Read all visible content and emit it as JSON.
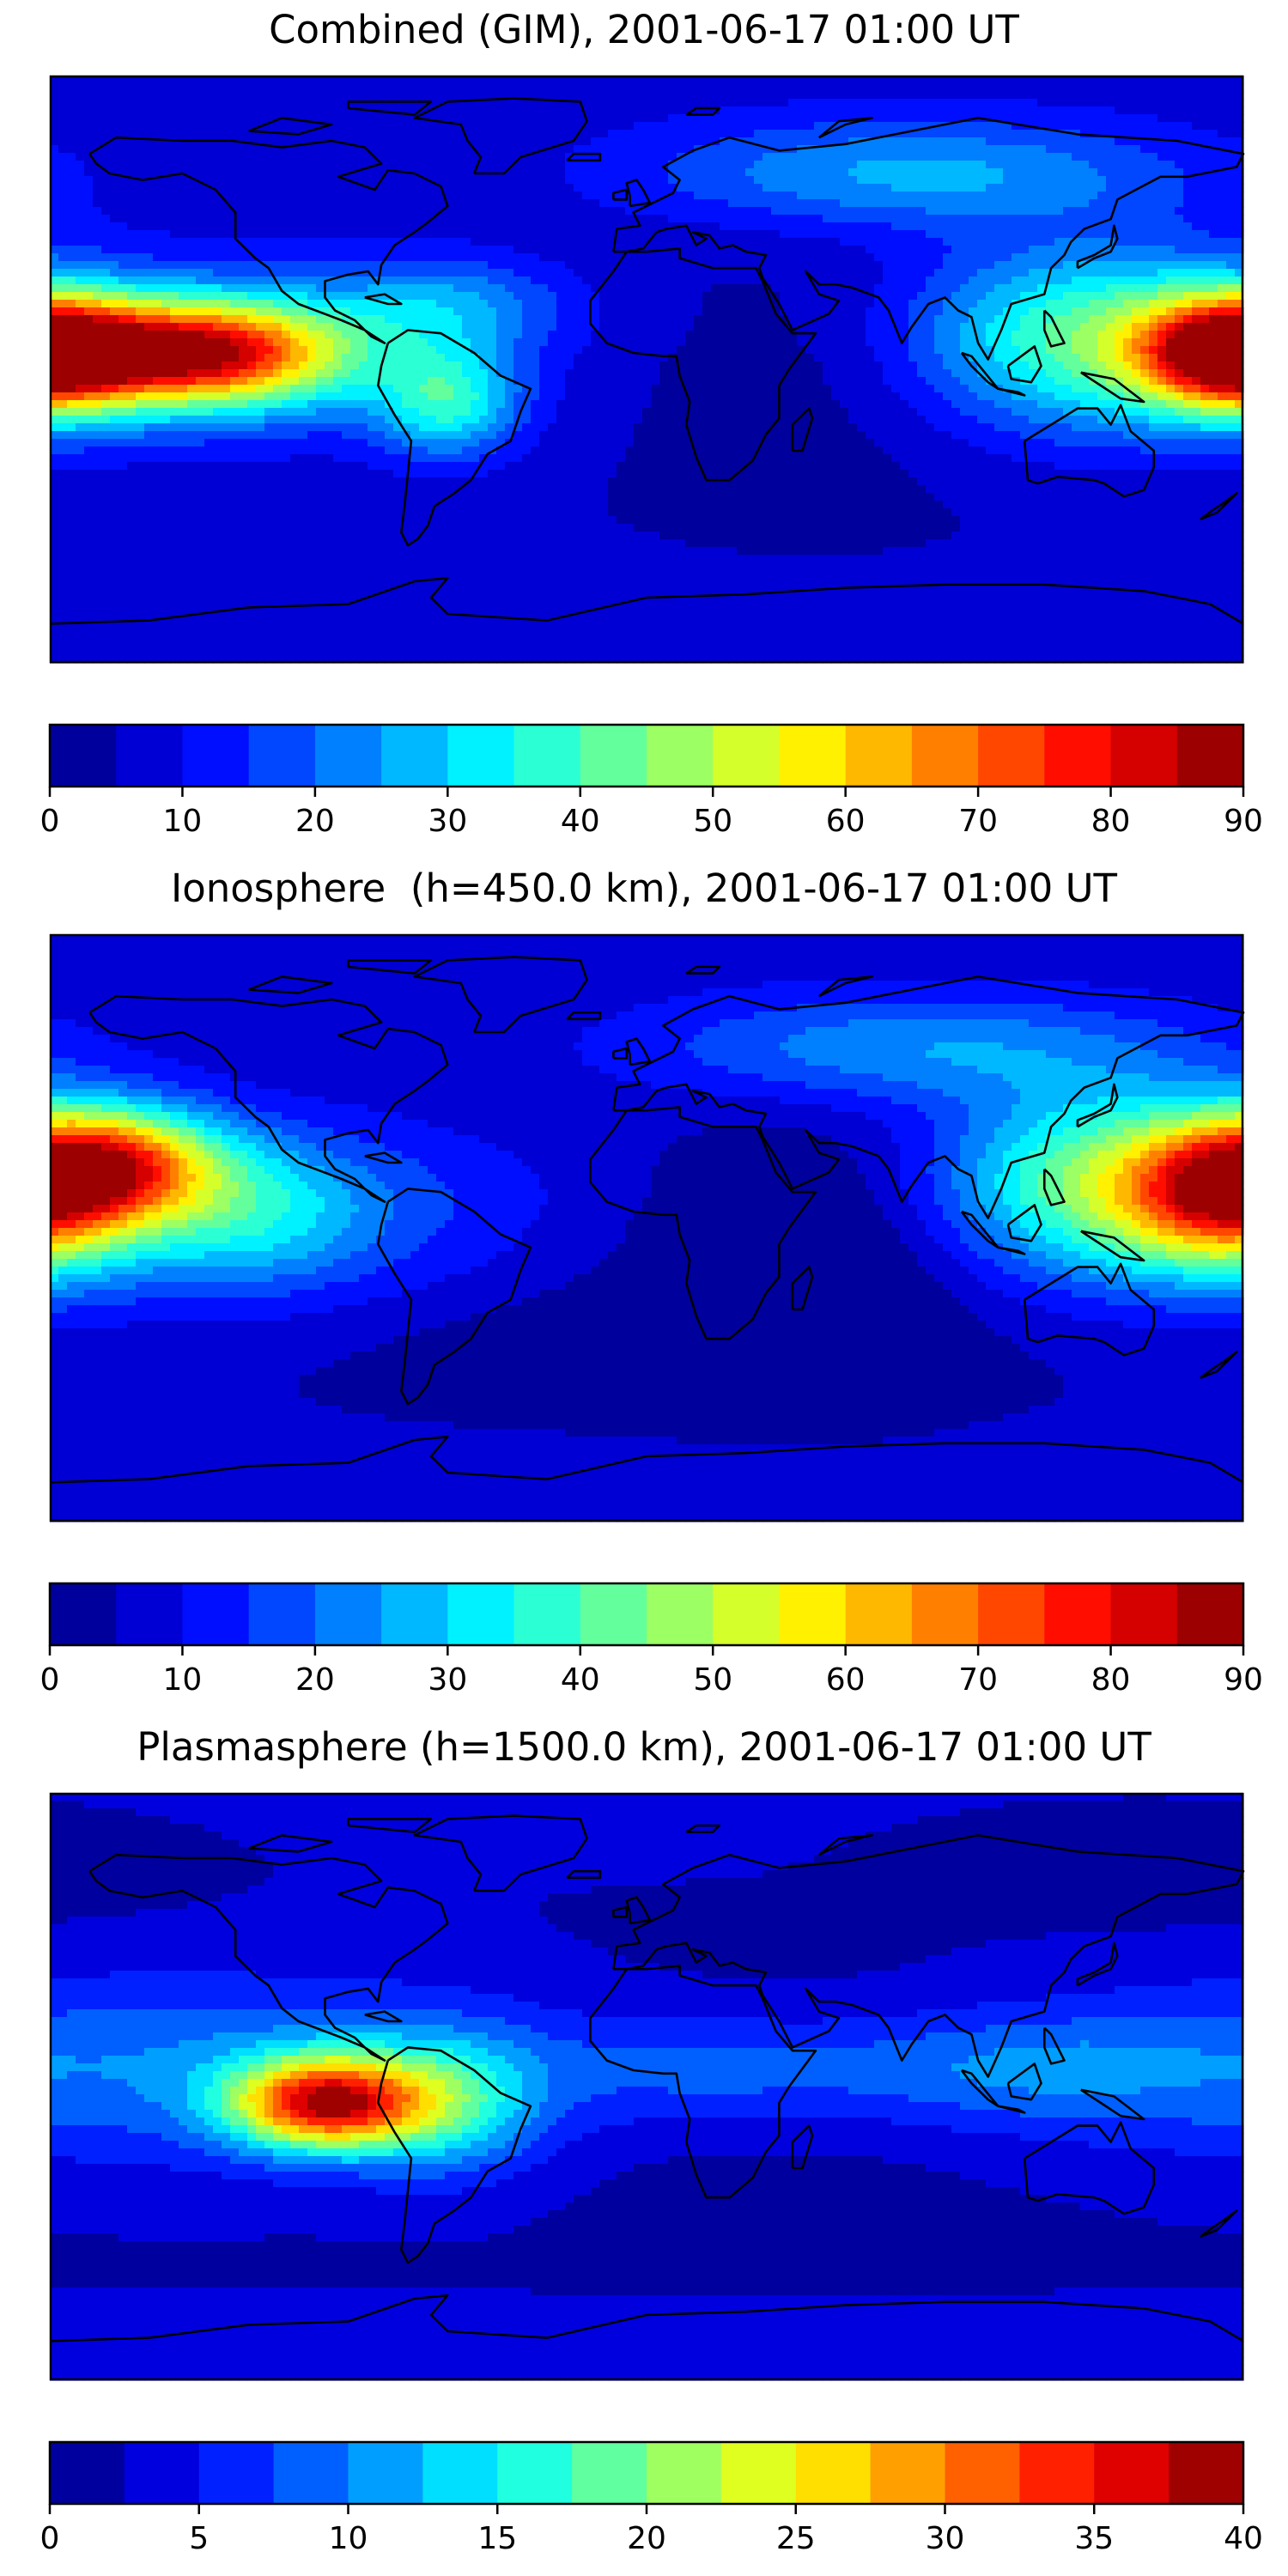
{
  "chart_data": [
    {
      "type": "heatmap",
      "title": "Combined (GIM), 2001-06-17 01:00 UT",
      "xlabel": "",
      "ylabel": "",
      "lon_range": [
        -180,
        180
      ],
      "lat_range": [
        -90,
        90
      ],
      "grid": false,
      "coastlines": true,
      "colormap": "jet",
      "colorbar": {
        "orientation": "horizontal",
        "position": "bottom",
        "vmin": 0,
        "vmax": 90,
        "levels": [
          0,
          5,
          10,
          15,
          20,
          25,
          30,
          35,
          40,
          45,
          50,
          55,
          60,
          65,
          70,
          75,
          80,
          85,
          90
        ],
        "ticks": [
          0,
          10,
          20,
          30,
          40,
          50,
          60,
          70,
          80,
          90
        ],
        "tick_labels": [
          "0",
          "10",
          "20",
          "30",
          "40",
          "50",
          "60",
          "70",
          "80",
          "90"
        ]
      },
      "features": [
        {
          "lon": -135,
          "lat": 5,
          "value": 82,
          "sx": 30,
          "sy": 11
        },
        {
          "lon": -178,
          "lat": 5,
          "value": 38,
          "sx": 18,
          "sy": 12
        },
        {
          "lon": 0,
          "lat": -35,
          "value": 14,
          "sx": 50,
          "sy": 15
        },
        {
          "lon": 45,
          "lat": -15,
          "value": 12,
          "sx": 35,
          "sy": 25
        },
        {
          "lon": 130,
          "lat": 10,
          "value": 42,
          "sx": 35,
          "sy": 20
        },
        {
          "lon": 175,
          "lat": 5,
          "value": 62,
          "sx": 20,
          "sy": 12
        },
        {
          "lon": -60,
          "lat": -10,
          "value": 40,
          "sx": 15,
          "sy": 12
        },
        {
          "lon": -60,
          "lat": 20,
          "value": 28,
          "sx": 25,
          "sy": 10
        },
        {
          "lon": 80,
          "lat": 60,
          "value": 34,
          "sx": 60,
          "sy": 12
        }
      ]
    },
    {
      "type": "heatmap",
      "title": "Ionosphere  (h=450.0 km), 2001-06-17 01:00 UT",
      "xlabel": "",
      "ylabel": "",
      "lon_range": [
        -180,
        180
      ],
      "lat_range": [
        -90,
        90
      ],
      "grid": false,
      "coastlines": true,
      "colormap": "jet",
      "colorbar": {
        "orientation": "horizontal",
        "position": "bottom",
        "vmin": 0,
        "vmax": 90,
        "levels": [
          0,
          5,
          10,
          15,
          20,
          25,
          30,
          35,
          40,
          45,
          50,
          55,
          60,
          65,
          70,
          75,
          80,
          85,
          90
        ],
        "ticks": [
          0,
          10,
          20,
          30,
          40,
          50,
          60,
          70,
          80,
          90
        ],
        "tick_labels": [
          "0",
          "10",
          "20",
          "30",
          "40",
          "50",
          "60",
          "70",
          "80",
          "90"
        ]
      },
      "features": [
        {
          "lon": -160,
          "lat": 20,
          "value": 62,
          "sx": 22,
          "sy": 12
        },
        {
          "lon": -120,
          "lat": 5,
          "value": 28,
          "sx": 25,
          "sy": 15
        },
        {
          "lon": 0,
          "lat": -35,
          "value": 10,
          "sx": 60,
          "sy": 15
        },
        {
          "lon": 50,
          "lat": -10,
          "value": 6,
          "sx": 30,
          "sy": 25
        },
        {
          "lon": 140,
          "lat": 15,
          "value": 48,
          "sx": 35,
          "sy": 20
        },
        {
          "lon": 175,
          "lat": 10,
          "value": 58,
          "sx": 20,
          "sy": 15
        },
        {
          "lon": 80,
          "lat": 55,
          "value": 32,
          "sx": 60,
          "sy": 12
        }
      ]
    },
    {
      "type": "heatmap",
      "title": "Plasmasphere (h=1500.0 km), 2001-06-17 01:00 UT",
      "xlabel": "",
      "ylabel": "",
      "lon_range": [
        -180,
        180
      ],
      "lat_range": [
        -90,
        90
      ],
      "grid": false,
      "coastlines": true,
      "colormap": "jet",
      "colorbar": {
        "orientation": "horizontal",
        "position": "bottom",
        "vmin": 0,
        "vmax": 40,
        "levels": [
          0,
          2.5,
          5,
          7.5,
          10,
          12.5,
          15,
          17.5,
          20,
          22.5,
          25,
          27.5,
          30,
          32.5,
          35,
          37.5,
          40
        ],
        "ticks": [
          0,
          5,
          10,
          15,
          20,
          25,
          30,
          35,
          40
        ],
        "tick_labels": [
          "0",
          "5",
          "10",
          "15",
          "20",
          "25",
          "30",
          "35",
          "40"
        ]
      },
      "features": [
        {
          "lon": -97,
          "lat": -5,
          "value": 36,
          "sx": 20,
          "sy": 10
        },
        {
          "lon": -60,
          "lat": -5,
          "value": 17,
          "sx": 20,
          "sy": 15
        },
        {
          "lon": 20,
          "lat": 5,
          "value": 12,
          "sx": 40,
          "sy": 12
        },
        {
          "lon": 110,
          "lat": 5,
          "value": 12,
          "sx": 40,
          "sy": 12
        },
        {
          "lon": 150,
          "lat": 70,
          "value": 2,
          "sx": 40,
          "sy": 10
        }
      ]
    }
  ]
}
